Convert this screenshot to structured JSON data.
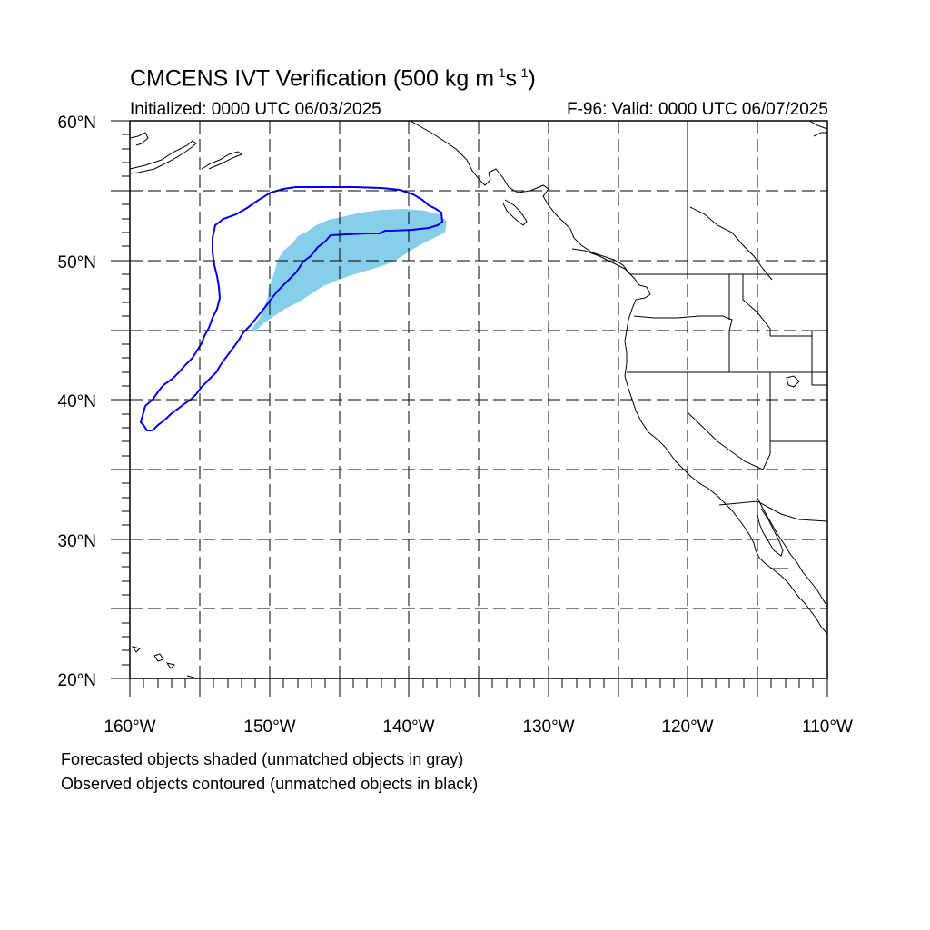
{
  "title": {
    "main": "CMCENS IVT Verification (500 kg m",
    "exp1": "-1",
    "mid": "s",
    "exp2": "-1",
    "end": ")"
  },
  "subtitle_left": "Initialized: 0000 UTC 06/03/2025",
  "subtitle_right": "F-96: Valid: 0000 UTC 06/07/2025",
  "notes": [
    "Forecasted objects shaded (unmatched objects in gray)",
    "Observed objects contoured (unmatched objects in black)"
  ],
  "colors": {
    "forecast_shade": "#87ceeb",
    "observed_contour": "#0000ee",
    "coast": "#000000",
    "grid": "#000000"
  },
  "map": {
    "lon_range": [
      -160,
      -110
    ],
    "lat_range": [
      20,
      60
    ],
    "lat_labels": [
      "20°N",
      "30°N",
      "40°N",
      "50°N",
      "60°N"
    ],
    "lon_labels": [
      "160°W",
      "150°W",
      "140°W",
      "130°W",
      "120°W",
      "110°W"
    ],
    "grid_spacing_deg": 5,
    "gridlines": "dashed"
  }
}
